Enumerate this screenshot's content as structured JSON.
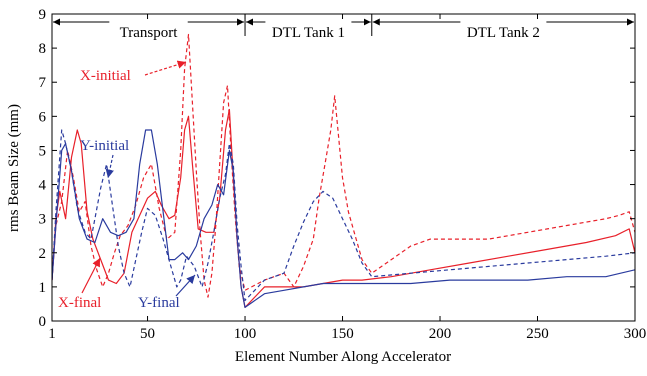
{
  "chart_data": {
    "type": "line",
    "xlabel": "Element Number Along Accelerator",
    "ylabel": "rms Beam Size (mm)",
    "xlim": [
      1,
      300
    ],
    "ylim": [
      0,
      9
    ],
    "x_ticks": [
      1,
      50,
      100,
      150,
      200,
      250,
      300
    ],
    "y_ticks": [
      0,
      1,
      2,
      3,
      4,
      5,
      6,
      7,
      8,
      9
    ],
    "grid": false,
    "sections": [
      {
        "label": "Transport",
        "start": 1,
        "end": 100
      },
      {
        "label": "DTL Tank 1",
        "start": 100,
        "end": 165
      },
      {
        "label": "DTL Tank 2",
        "start": 165,
        "end": 300
      }
    ],
    "series": [
      {
        "name": "X-initial",
        "color": "#e8202a",
        "style": "dashed",
        "points": [
          [
            1,
            1.2
          ],
          [
            3,
            2.8
          ],
          [
            6,
            3.5
          ],
          [
            9,
            5.0
          ],
          [
            12,
            4.2
          ],
          [
            15,
            3.2
          ],
          [
            18,
            3.5
          ],
          [
            21,
            2.2
          ],
          [
            24,
            1.5
          ],
          [
            27,
            1.0
          ],
          [
            30,
            1.4
          ],
          [
            33,
            2.0
          ],
          [
            36,
            2.5
          ],
          [
            40,
            2.8
          ],
          [
            44,
            3.4
          ],
          [
            48,
            4.2
          ],
          [
            52,
            4.6
          ],
          [
            56,
            3.3
          ],
          [
            60,
            2.4
          ],
          [
            64,
            2.6
          ],
          [
            67,
            5.0
          ],
          [
            69,
            7.4
          ],
          [
            71,
            8.4
          ],
          [
            73,
            6.4
          ],
          [
            75,
            4.4
          ],
          [
            77,
            2.6
          ],
          [
            79,
            1.2
          ],
          [
            81,
            0.7
          ],
          [
            83,
            1.4
          ],
          [
            85,
            2.8
          ],
          [
            87,
            4.6
          ],
          [
            89,
            6.4
          ],
          [
            91,
            6.9
          ],
          [
            93,
            4.8
          ],
          [
            95,
            3.0
          ],
          [
            97,
            1.6
          ],
          [
            100,
            0.9
          ],
          [
            110,
            1.2
          ],
          [
            120,
            1.4
          ],
          [
            125,
            1.0
          ],
          [
            130,
            1.6
          ],
          [
            135,
            2.4
          ],
          [
            138,
            3.6
          ],
          [
            141,
            4.6
          ],
          [
            144,
            5.6
          ],
          [
            146,
            6.6
          ],
          [
            148,
            5.4
          ],
          [
            150,
            4.2
          ],
          [
            153,
            3.2
          ],
          [
            156,
            2.6
          ],
          [
            160,
            1.8
          ],
          [
            165,
            1.4
          ],
          [
            175,
            1.8
          ],
          [
            185,
            2.2
          ],
          [
            195,
            2.4
          ],
          [
            205,
            2.4
          ],
          [
            215,
            2.4
          ],
          [
            225,
            2.4
          ],
          [
            235,
            2.5
          ],
          [
            245,
            2.6
          ],
          [
            255,
            2.7
          ],
          [
            265,
            2.8
          ],
          [
            275,
            2.9
          ],
          [
            285,
            3.0
          ],
          [
            292,
            3.1
          ],
          [
            297,
            3.2
          ],
          [
            300,
            2.6
          ]
        ]
      },
      {
        "name": "X-final",
        "color": "#e8202a",
        "style": "solid",
        "points": [
          [
            1,
            1.2
          ],
          [
            3,
            3.0
          ],
          [
            5,
            3.8
          ],
          [
            8,
            3.0
          ],
          [
            11,
            4.8
          ],
          [
            14,
            5.6
          ],
          [
            16,
            5.2
          ],
          [
            19,
            3.2
          ],
          [
            22,
            2.4
          ],
          [
            26,
            1.8
          ],
          [
            30,
            1.2
          ],
          [
            34,
            1.1
          ],
          [
            38,
            1.4
          ],
          [
            42,
            2.6
          ],
          [
            46,
            3.1
          ],
          [
            50,
            3.6
          ],
          [
            54,
            3.8
          ],
          [
            57,
            3.4
          ],
          [
            61,
            3.0
          ],
          [
            64,
            3.1
          ],
          [
            67,
            4.2
          ],
          [
            69,
            5.6
          ],
          [
            71,
            6.0
          ],
          [
            73,
            4.6
          ],
          [
            76,
            2.7
          ],
          [
            80,
            2.6
          ],
          [
            84,
            2.6
          ],
          [
            87,
            3.6
          ],
          [
            90,
            5.6
          ],
          [
            92,
            6.2
          ],
          [
            94,
            4.2
          ],
          [
            96,
            2.4
          ],
          [
            98,
            1.0
          ],
          [
            100,
            0.4
          ],
          [
            110,
            1.0
          ],
          [
            120,
            1.0
          ],
          [
            130,
            1.0
          ],
          [
            140,
            1.1
          ],
          [
            150,
            1.2
          ],
          [
            160,
            1.2
          ],
          [
            175,
            1.3
          ],
          [
            195,
            1.5
          ],
          [
            215,
            1.7
          ],
          [
            235,
            1.9
          ],
          [
            255,
            2.1
          ],
          [
            275,
            2.3
          ],
          [
            290,
            2.5
          ],
          [
            297,
            2.7
          ],
          [
            300,
            2.0
          ]
        ]
      },
      {
        "name": "Y-initial",
        "color": "#2a3b9e",
        "style": "dashed",
        "points": [
          [
            1,
            1.2
          ],
          [
            3,
            3.2
          ],
          [
            6,
            5.6
          ],
          [
            8,
            5.2
          ],
          [
            11,
            4.4
          ],
          [
            14,
            3.3
          ],
          [
            18,
            2.6
          ],
          [
            21,
            2.4
          ],
          [
            23,
            3.0
          ],
          [
            26,
            3.9
          ],
          [
            29,
            4.6
          ],
          [
            32,
            3.4
          ],
          [
            35,
            2.2
          ],
          [
            38,
            1.4
          ],
          [
            41,
            1.0
          ],
          [
            44,
            1.8
          ],
          [
            47,
            2.6
          ],
          [
            50,
            3.3
          ],
          [
            54,
            3.1
          ],
          [
            58,
            2.4
          ],
          [
            62,
            1.6
          ],
          [
            65,
            1.0
          ],
          [
            67,
            1.2
          ],
          [
            70,
            1.9
          ],
          [
            74,
            1.6
          ],
          [
            78,
            1.0
          ],
          [
            81,
            1.7
          ],
          [
            84,
            2.6
          ],
          [
            87,
            3.6
          ],
          [
            90,
            4.3
          ],
          [
            92,
            5.2
          ],
          [
            94,
            4.6
          ],
          [
            96,
            2.8
          ],
          [
            98,
            1.6
          ],
          [
            100,
            0.6
          ],
          [
            110,
            1.2
          ],
          [
            120,
            1.4
          ],
          [
            125,
            2.2
          ],
          [
            130,
            2.9
          ],
          [
            135,
            3.5
          ],
          [
            140,
            3.8
          ],
          [
            145,
            3.6
          ],
          [
            150,
            3.0
          ],
          [
            155,
            2.4
          ],
          [
            160,
            1.7
          ],
          [
            165,
            1.3
          ],
          [
            185,
            1.4
          ],
          [
            205,
            1.5
          ],
          [
            225,
            1.6
          ],
          [
            245,
            1.7
          ],
          [
            265,
            1.8
          ],
          [
            285,
            1.9
          ],
          [
            300,
            2.0
          ]
        ]
      },
      {
        "name": "Y-final",
        "color": "#2a3b9e",
        "style": "solid",
        "points": [
          [
            1,
            1.2
          ],
          [
            3,
            2.8
          ],
          [
            6,
            5.0
          ],
          [
            8,
            5.2
          ],
          [
            11,
            4.4
          ],
          [
            15,
            3.0
          ],
          [
            19,
            2.4
          ],
          [
            23,
            2.3
          ],
          [
            27,
            3.0
          ],
          [
            31,
            2.6
          ],
          [
            35,
            2.5
          ],
          [
            39,
            2.6
          ],
          [
            43,
            3.0
          ],
          [
            46,
            4.6
          ],
          [
            49,
            5.6
          ],
          [
            52,
            5.6
          ],
          [
            55,
            4.6
          ],
          [
            58,
            3.2
          ],
          [
            61,
            1.8
          ],
          [
            64,
            1.8
          ],
          [
            68,
            2.0
          ],
          [
            71,
            1.8
          ],
          [
            75,
            2.2
          ],
          [
            79,
            3.0
          ],
          [
            83,
            3.4
          ],
          [
            86,
            4.0
          ],
          [
            89,
            3.7
          ],
          [
            92,
            5.0
          ],
          [
            94,
            4.4
          ],
          [
            96,
            2.4
          ],
          [
            98,
            1.0
          ],
          [
            100,
            0.4
          ],
          [
            110,
            0.8
          ],
          [
            120,
            0.9
          ],
          [
            130,
            1.0
          ],
          [
            140,
            1.1
          ],
          [
            150,
            1.1
          ],
          [
            165,
            1.1
          ],
          [
            185,
            1.1
          ],
          [
            205,
            1.2
          ],
          [
            225,
            1.2
          ],
          [
            245,
            1.2
          ],
          [
            265,
            1.3
          ],
          [
            285,
            1.3
          ],
          [
            300,
            1.5
          ]
        ]
      }
    ],
    "annotations": [
      "X-initial",
      "X-final",
      "Y-initial",
      "Y-final"
    ]
  }
}
